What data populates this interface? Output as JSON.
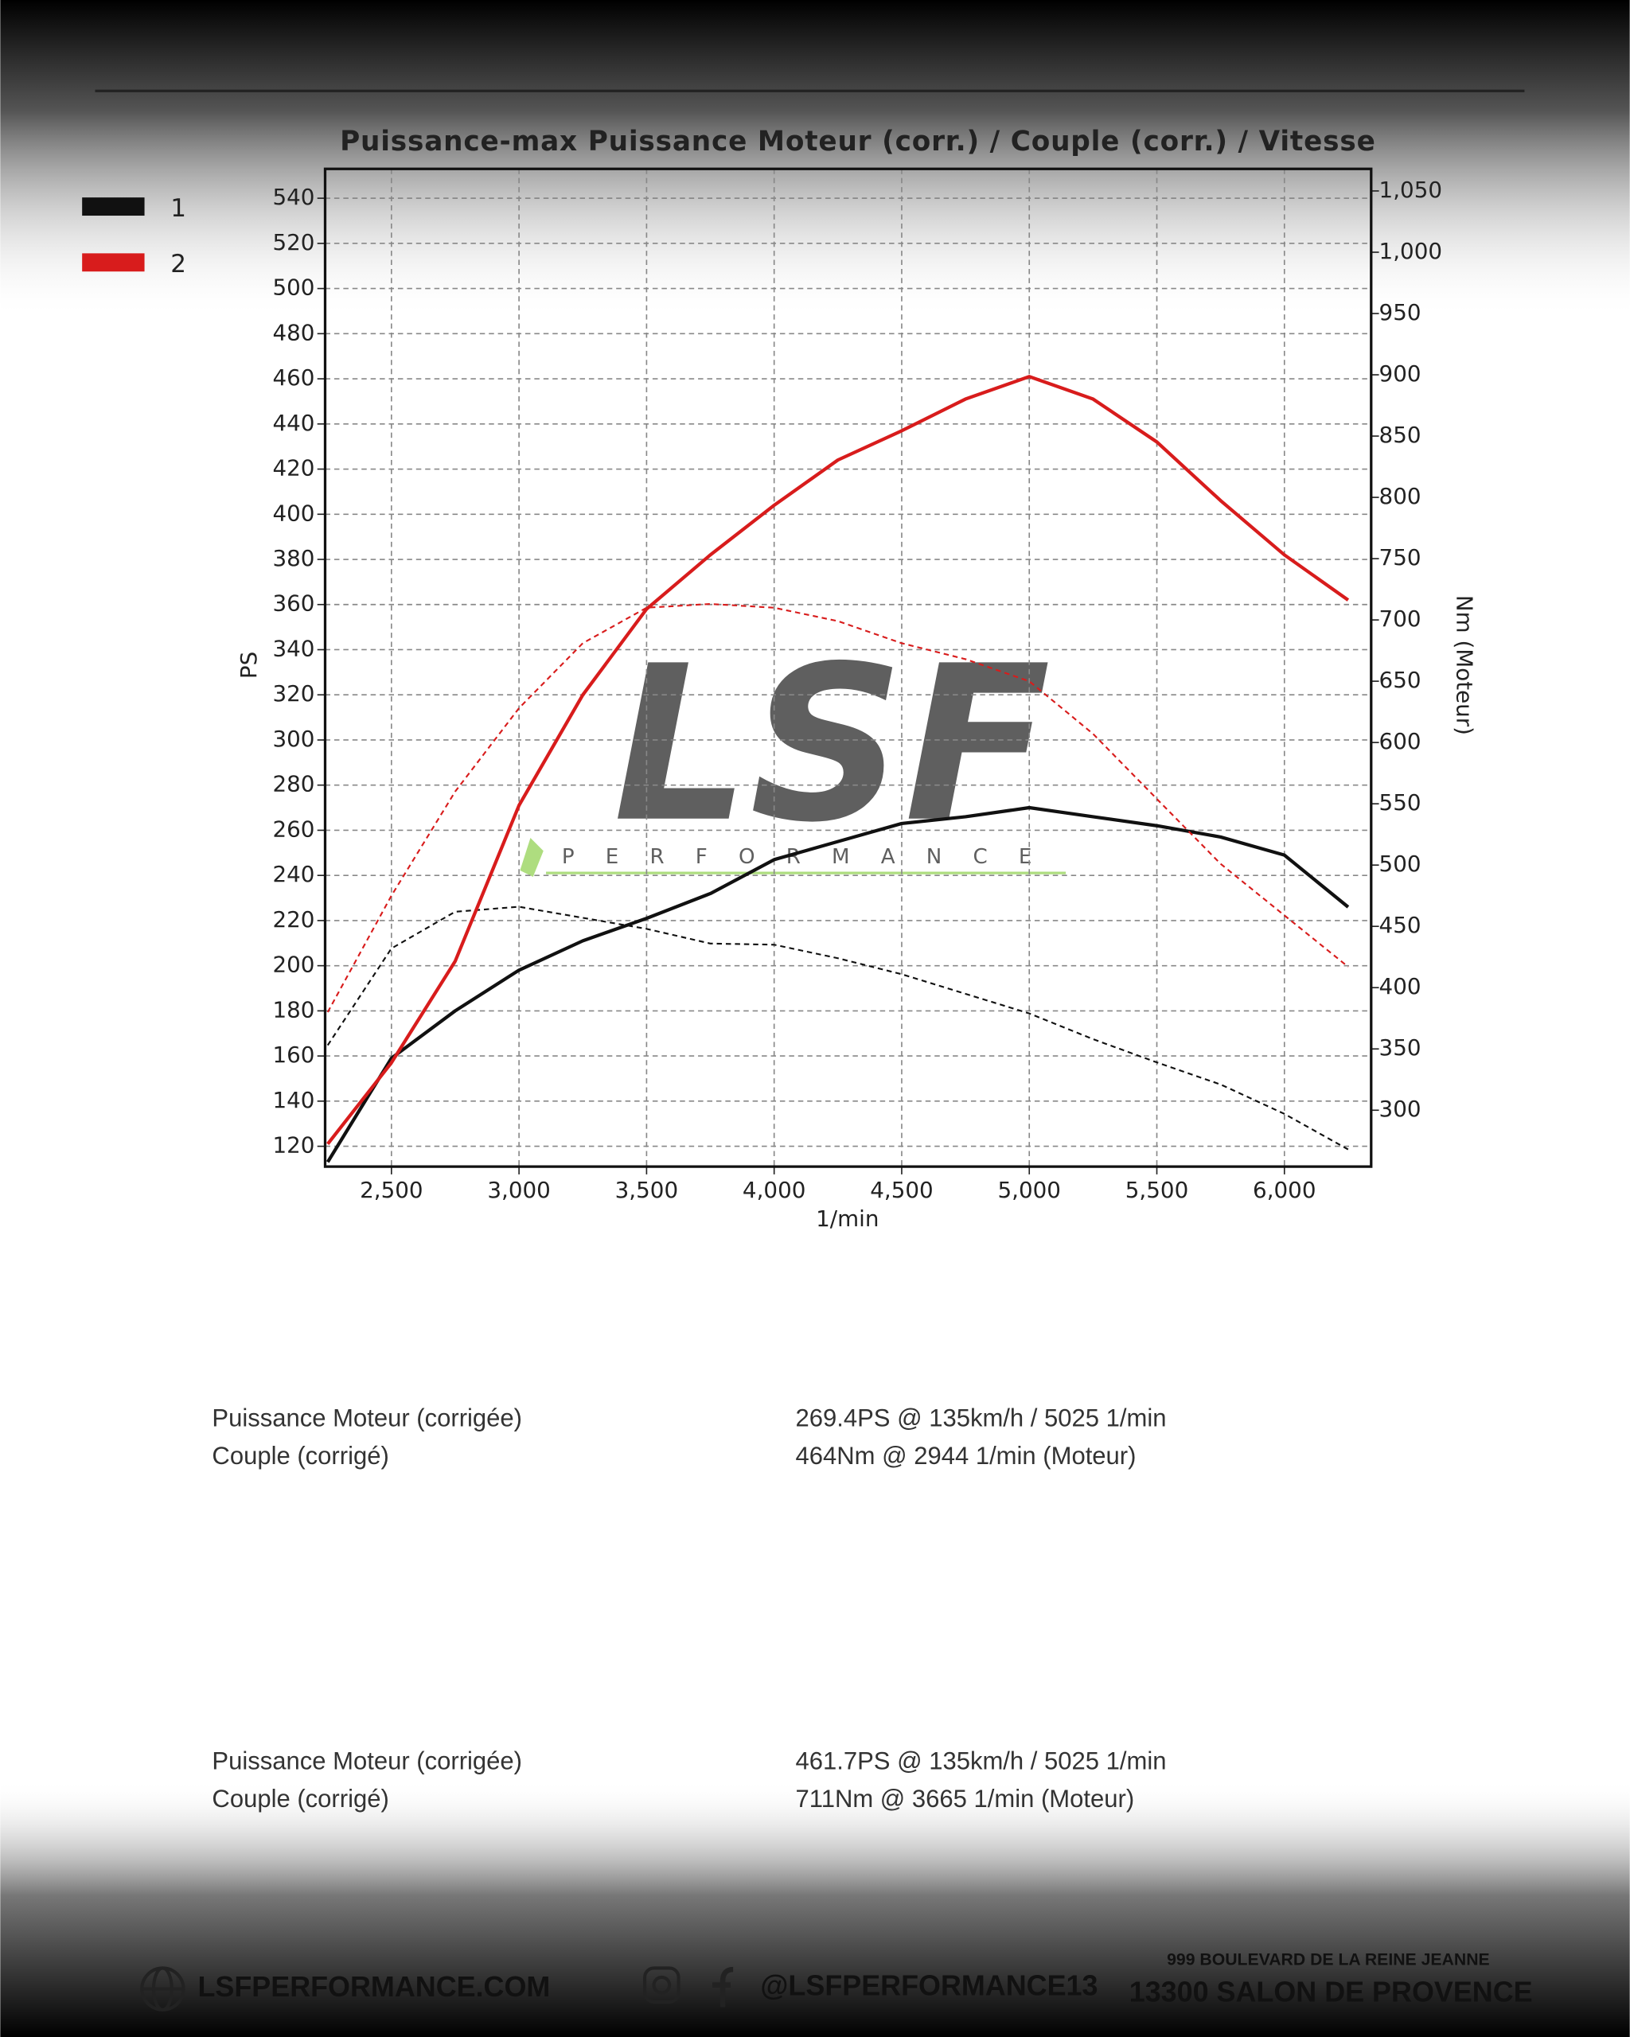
{
  "chart_data": {
    "type": "line",
    "title": "Puissance-max Puissance Moteur (corr.) / Couple (corr.) / Vitesse",
    "x_label": "1/min",
    "y_label": "PS",
    "y2_label": "Nm (Moteur)",
    "watermark": "LSF",
    "watermark_subtitle": "PERFORMANCE",
    "x": [
      2250,
      2500,
      2750,
      3000,
      3250,
      3500,
      3750,
      4000,
      4250,
      4500,
      4750,
      5000,
      5250,
      5500,
      5750,
      6000,
      6250
    ],
    "series": [
      {
        "name": "1",
        "color": "#111111",
        "power": [
          113,
          159,
          180,
          198,
          211,
          221,
          232,
          247,
          255,
          263,
          266,
          270,
          266,
          262,
          257,
          249,
          226
        ],
        "torque": [
          353,
          432,
          462,
          466,
          457,
          448,
          436,
          435,
          424,
          411,
          395,
          379,
          358,
          339,
          321,
          297,
          268
        ]
      },
      {
        "name": "2",
        "color": "#d81c1c",
        "power": [
          121,
          157,
          202,
          271,
          320,
          358,
          382,
          404,
          424,
          437,
          451,
          461,
          451,
          432,
          406,
          382,
          362
        ],
        "torque": [
          380,
          475,
          560,
          628,
          681,
          710,
          713,
          710,
          699,
          681,
          668,
          650,
          607,
          554,
          501,
          459,
          417
        ]
      }
    ],
    "power_style": "solid",
    "torque_style": "dashed",
    "xlim": [
      2240,
      6340
    ],
    "xticks": [
      {
        "value": 2500,
        "label": "2,500"
      },
      {
        "value": 3000,
        "label": "3,000"
      },
      {
        "value": 3500,
        "label": "3,500"
      },
      {
        "value": 4000,
        "label": "4,000"
      },
      {
        "value": 4500,
        "label": "4,500"
      },
      {
        "value": 5000,
        "label": "5,000"
      },
      {
        "value": 5500,
        "label": "5,500"
      },
      {
        "value": 6000,
        "label": "6,000"
      }
    ],
    "ylim": [
      111,
      553
    ],
    "yticks": [
      120,
      140,
      160,
      180,
      200,
      220,
      240,
      260,
      280,
      300,
      320,
      340,
      360,
      380,
      400,
      420,
      440,
      460,
      480,
      500,
      520,
      540
    ],
    "y2lim": [
      254,
      1068
    ],
    "y2ticks": [
      300,
      350,
      400,
      450,
      500,
      550,
      600,
      650,
      700,
      750,
      800,
      850,
      900,
      950,
      {
        "value": 1000,
        "label": "1,000"
      },
      {
        "value": 1050,
        "label": "1,050"
      }
    ],
    "grid": true,
    "legend": "top-left"
  },
  "results": [
    {
      "rows": [
        [
          "Puissance Moteur (corrigée)",
          "269.4PS @ 135km/h / 5025 1/min"
        ],
        [
          "Couple (corrigé)",
          "464Nm @ 2944 1/min (Moteur)"
        ]
      ]
    },
    {
      "rows": [
        [
          "Puissance Moteur (corrigée)",
          "461.7PS @ 135km/h / 5025 1/min"
        ],
        [
          "Couple (corrigé)",
          "711Nm @ 3665 1/min (Moteur)"
        ]
      ]
    }
  ],
  "footer": {
    "website": "LSFPERFORMANCE.COM",
    "social": "@LSFPERFORMANCE13",
    "address": "999 BOULEVARD DE LA REINE JEANNE",
    "city": "13300 SALON DE PROVENCE"
  }
}
